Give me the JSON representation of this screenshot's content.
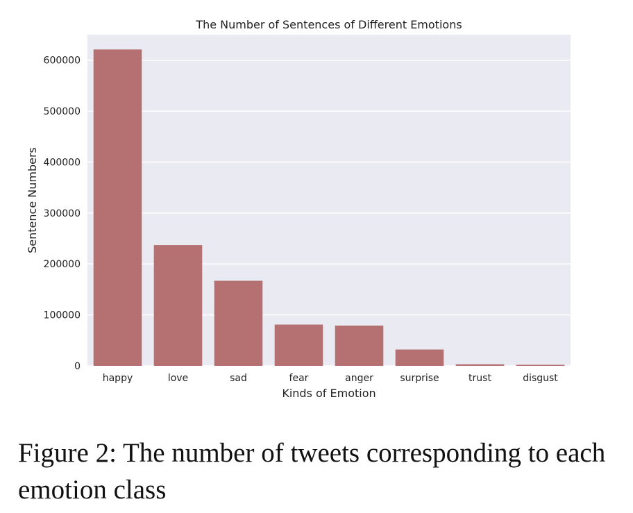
{
  "chart_data": {
    "type": "bar",
    "title": "The Number of Sentences of Different Emotions",
    "xlabel": "Kinds of Emotion",
    "ylabel": "Sentence Numbers",
    "categories": [
      "happy",
      "love",
      "sad",
      "fear",
      "anger",
      "surprise",
      "trust",
      "disgust"
    ],
    "values": [
      621000,
      237000,
      167000,
      81000,
      79000,
      32000,
      3000,
      2000
    ],
    "yticks": [
      0,
      100000,
      200000,
      300000,
      400000,
      500000,
      600000
    ],
    "ylim": [
      0,
      650000
    ],
    "grid": true,
    "bar_color": "#b57171",
    "background_color": "#eaeaf2"
  },
  "caption": "Figure 2: The number of tweets corresponding to each emotion class"
}
